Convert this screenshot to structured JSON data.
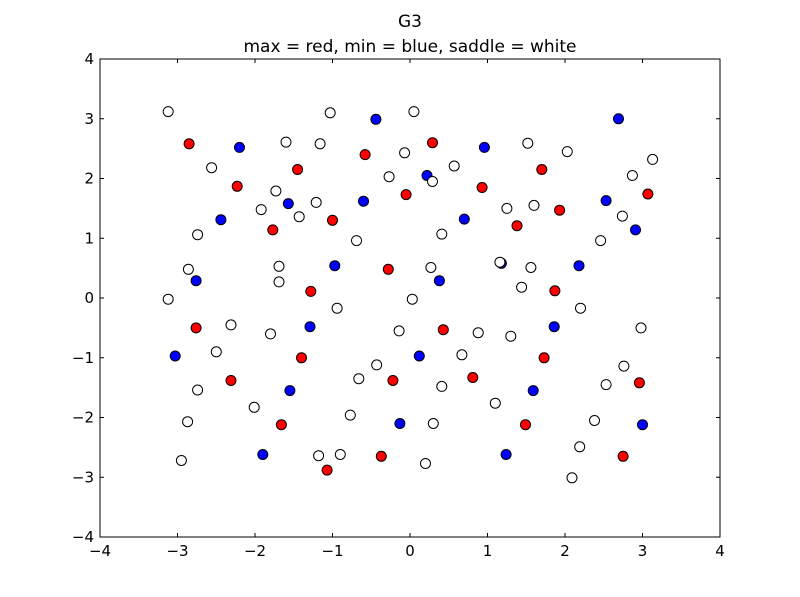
{
  "chart_data": {
    "type": "scatter",
    "title": "G3",
    "subtitle": "max = red, min = blue, saddle = white",
    "xlabel": "",
    "ylabel": "",
    "xlim": [
      -4,
      4
    ],
    "ylim": [
      -4,
      4
    ],
    "x_ticks": [
      -4,
      -3,
      -2,
      -1,
      0,
      1,
      2,
      3,
      4
    ],
    "y_ticks": [
      -4,
      -3,
      -2,
      -1,
      0,
      1,
      2,
      3,
      4
    ],
    "x_tick_labels": [
      "−4",
      "−3",
      "−2",
      "−1",
      "0",
      "1",
      "2",
      "3",
      "4"
    ],
    "y_tick_labels": [
      "−4",
      "−3",
      "−2",
      "−1",
      "0",
      "1",
      "2",
      "3",
      "4"
    ],
    "grid": false,
    "legend": "none",
    "series": [
      {
        "color": "#ff0000",
        "points": [
          [
            -2.85,
            2.58
          ],
          [
            -2.23,
            1.87
          ],
          [
            -1.45,
            2.15
          ],
          [
            -0.58,
            2.4
          ],
          [
            0.29,
            2.6
          ],
          [
            1.7,
            2.15
          ],
          [
            -1.77,
            1.14
          ],
          [
            -1.0,
            1.3
          ],
          [
            -0.05,
            1.73
          ],
          [
            0.93,
            1.85
          ],
          [
            1.38,
            1.21
          ],
          [
            1.93,
            1.47
          ],
          [
            3.07,
            1.74
          ],
          [
            -1.28,
            0.11
          ],
          [
            -0.28,
            0.48
          ],
          [
            1.87,
            0.12
          ],
          [
            -2.76,
            -0.5
          ],
          [
            -1.4,
            -1.0
          ],
          [
            0.43,
            -0.53
          ],
          [
            1.73,
            -1.0
          ],
          [
            -2.31,
            -1.38
          ],
          [
            -0.22,
            -1.38
          ],
          [
            0.81,
            -1.33
          ],
          [
            2.96,
            -1.42
          ],
          [
            -1.66,
            -2.12
          ],
          [
            1.49,
            -2.12
          ],
          [
            -1.07,
            -2.88
          ],
          [
            -0.37,
            -2.65
          ],
          [
            2.75,
            -2.65
          ]
        ]
      },
      {
        "color": "#0000ff",
        "points": [
          [
            -2.2,
            2.52
          ],
          [
            -0.44,
            2.99
          ],
          [
            0.96,
            2.52
          ],
          [
            2.69,
            3.0
          ],
          [
            -2.44,
            1.31
          ],
          [
            -1.57,
            1.58
          ],
          [
            -0.6,
            1.62
          ],
          [
            0.22,
            2.05
          ],
          [
            0.7,
            1.32
          ],
          [
            2.53,
            1.63
          ],
          [
            2.91,
            1.14
          ],
          [
            -2.76,
            0.29
          ],
          [
            -0.97,
            0.54
          ],
          [
            0.38,
            0.29
          ],
          [
            1.18,
            0.58
          ],
          [
            2.18,
            0.54
          ],
          [
            -3.03,
            -0.97
          ],
          [
            -1.29,
            -0.48
          ],
          [
            0.12,
            -0.97
          ],
          [
            1.86,
            -0.48
          ],
          [
            -1.55,
            -1.55
          ],
          [
            1.59,
            -1.55
          ],
          [
            -1.9,
            -2.62
          ],
          [
            -0.13,
            -2.1
          ],
          [
            1.24,
            -2.62
          ],
          [
            3.0,
            -2.12
          ]
        ]
      },
      {
        "color": "#ffffff",
        "points": [
          [
            -3.12,
            3.12
          ],
          [
            -1.03,
            3.1
          ],
          [
            0.05,
            3.12
          ],
          [
            -1.6,
            2.61
          ],
          [
            -1.16,
            2.58
          ],
          [
            -0.07,
            2.43
          ],
          [
            1.52,
            2.59
          ],
          [
            2.03,
            2.45
          ],
          [
            3.13,
            2.32
          ],
          [
            -2.56,
            2.18
          ],
          [
            -0.27,
            2.03
          ],
          [
            0.29,
            1.95
          ],
          [
            0.57,
            2.21
          ],
          [
            2.87,
            2.05
          ],
          [
            -1.92,
            1.48
          ],
          [
            -1.73,
            1.79
          ],
          [
            -1.43,
            1.36
          ],
          [
            -1.21,
            1.6
          ],
          [
            1.25,
            1.5
          ],
          [
            1.6,
            1.55
          ],
          [
            2.74,
            1.37
          ],
          [
            -2.74,
            1.06
          ],
          [
            -0.69,
            0.96
          ],
          [
            0.41,
            1.07
          ],
          [
            2.46,
            0.96
          ],
          [
            -2.86,
            0.48
          ],
          [
            -1.69,
            0.53
          ],
          [
            -1.69,
            0.27
          ],
          [
            0.27,
            0.51
          ],
          [
            1.16,
            0.6
          ],
          [
            1.56,
            0.51
          ],
          [
            -3.12,
            -0.02
          ],
          [
            0.03,
            -0.02
          ],
          [
            1.44,
            0.18
          ],
          [
            -0.94,
            -0.17
          ],
          [
            2.2,
            -0.17
          ],
          [
            -2.31,
            -0.45
          ],
          [
            -1.8,
            -0.6
          ],
          [
            -0.14,
            -0.55
          ],
          [
            0.88,
            -0.58
          ],
          [
            1.3,
            -0.64
          ],
          [
            2.98,
            -0.5
          ],
          [
            -2.5,
            -0.9
          ],
          [
            -0.66,
            -1.35
          ],
          [
            -0.43,
            -1.12
          ],
          [
            0.67,
            -0.95
          ],
          [
            2.76,
            -1.14
          ],
          [
            -2.74,
            -1.54
          ],
          [
            0.41,
            -1.48
          ],
          [
            2.53,
            -1.45
          ],
          [
            -2.01,
            -1.83
          ],
          [
            -0.77,
            -1.96
          ],
          [
            1.1,
            -1.76
          ],
          [
            2.38,
            -2.05
          ],
          [
            -2.87,
            -2.07
          ],
          [
            0.3,
            -2.1
          ],
          [
            -1.18,
            -2.64
          ],
          [
            -0.9,
            -2.62
          ],
          [
            2.19,
            -2.49
          ],
          [
            -2.95,
            -2.72
          ],
          [
            0.2,
            -2.77
          ],
          [
            2.09,
            -3.01
          ]
        ]
      }
    ]
  }
}
